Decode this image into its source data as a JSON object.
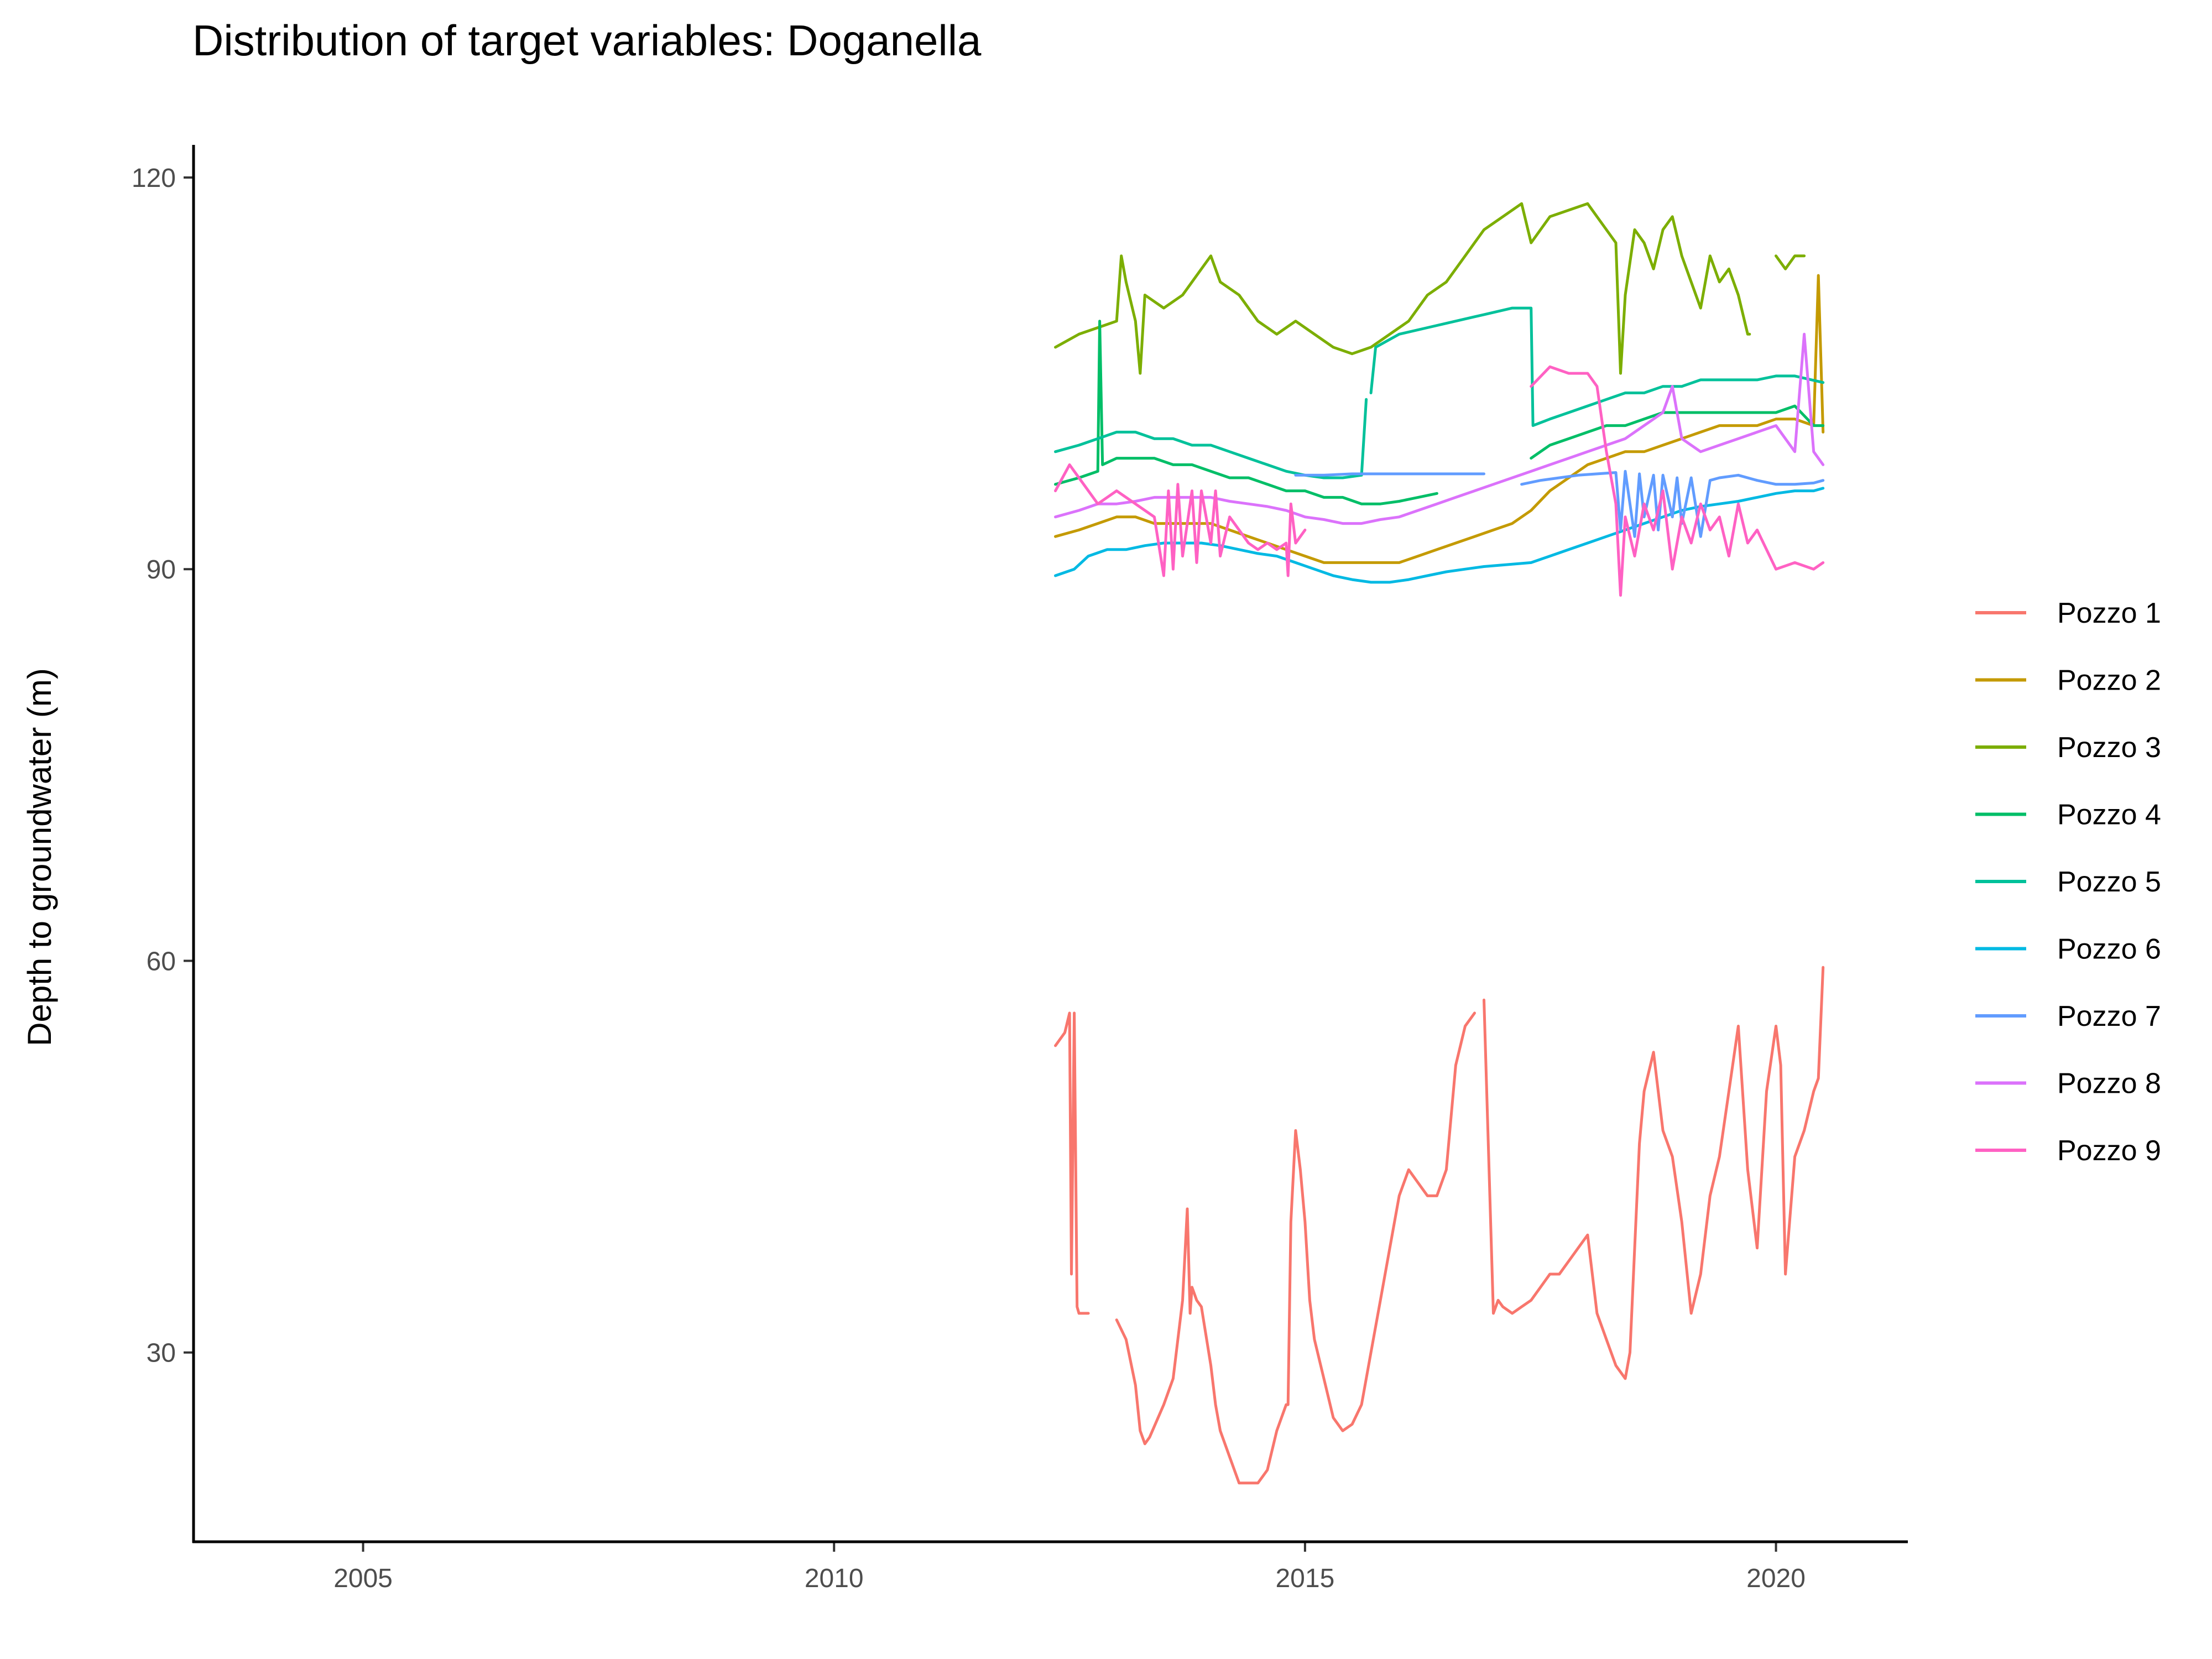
{
  "chart_data": {
    "type": "line",
    "title": "Distribution of target variables: Doganella",
    "xlabel": "",
    "ylabel": "Depth to groundwater (m)",
    "xlim": [
      2003.2,
      2021.4
    ],
    "ylim": [
      15.5,
      122.5
    ],
    "x_ticks": [
      2005,
      2010,
      2015,
      2020
    ],
    "y_ticks": [
      30,
      60,
      90,
      120
    ],
    "grid": false,
    "legend_position": "right",
    "series": [
      {
        "name": "Pozzo 1",
        "color": "#F8766D",
        "x": [
          2012.35,
          2012.45,
          2012.5,
          2012.52,
          2012.55,
          2012.58,
          2012.6,
          2012.65,
          2012.7,
          2013.0,
          2013.1,
          2013.2,
          2013.25,
          2013.3,
          2013.35,
          2013.5,
          2013.6,
          2013.7,
          2013.75,
          2013.78,
          2013.8,
          2013.85,
          2013.9,
          2014.0,
          2014.05,
          2014.1,
          2014.2,
          2014.3,
          2014.4,
          2014.5,
          2014.6,
          2014.7,
          2014.8,
          2014.82,
          2014.85,
          2014.9,
          2014.95,
          2015.0,
          2015.05,
          2015.1,
          2015.2,
          2015.3,
          2015.4,
          2015.5,
          2015.6,
          2015.7,
          2015.8,
          2015.9,
          2016.0,
          2016.1,
          2016.2,
          2016.3,
          2016.4,
          2016.5,
          2016.6,
          2016.7,
          2016.8,
          2016.9,
          2017.0,
          2017.05,
          2017.1,
          2017.2,
          2017.3,
          2017.4,
          2017.5,
          2017.6,
          2017.7,
          2017.8,
          2017.9,
          2018.0,
          2018.1,
          2018.15,
          2018.2,
          2018.3,
          2018.4,
          2018.45,
          2018.5,
          2018.55,
          2018.6,
          2018.7,
          2018.8,
          2018.9,
          2019.0,
          2019.1,
          2019.2,
          2019.3,
          2019.4,
          2019.5,
          2019.6,
          2019.7,
          2019.8,
          2019.9,
          2020.0,
          2020.05,
          2020.1,
          2020.2,
          2020.3,
          2020.4,
          2020.45,
          2020.5
        ],
        "y": [
          53.5,
          54.5,
          56,
          36,
          56,
          33.5,
          33,
          33,
          33,
          32.5,
          31,
          27.5,
          24,
          23,
          23.5,
          26,
          28,
          34,
          41,
          33,
          35,
          34,
          33.5,
          29,
          26,
          24,
          22,
          20,
          20,
          20,
          21,
          24,
          26,
          26,
          40,
          47,
          44,
          40,
          34,
          31,
          28,
          25,
          24,
          24.5,
          26,
          30,
          34,
          38,
          42,
          44,
          43,
          42,
          42,
          44,
          52,
          55,
          56,
          57,
          33,
          34,
          33.5,
          33,
          33.5,
          34,
          35,
          36,
          36,
          37,
          38,
          39,
          33,
          32,
          31,
          29,
          28,
          30,
          38,
          46,
          50,
          53,
          47,
          45,
          40,
          33,
          36,
          42,
          45,
          50,
          55,
          44,
          38,
          50,
          55,
          52,
          36,
          45,
          47,
          50,
          51,
          59.5
        ],
        "gap_after": [
          8,
          56
        ]
      },
      {
        "name": "Pozzo 2",
        "color": "#C49A00",
        "x": [
          2012.35,
          2012.6,
          2012.8,
          2013.0,
          2013.2,
          2013.4,
          2013.6,
          2013.8,
          2014.0,
          2014.2,
          2014.4,
          2014.6,
          2014.8,
          2015.0,
          2015.2,
          2015.4,
          2015.6,
          2015.8,
          2016.0,
          2016.2,
          2016.4,
          2016.6,
          2016.8,
          2017.0,
          2017.2,
          2017.4,
          2017.6,
          2017.8,
          2018.0,
          2018.2,
          2018.4,
          2018.6,
          2018.8,
          2019.0,
          2019.2,
          2019.4,
          2019.6,
          2019.8,
          2020.0,
          2020.2,
          2020.4,
          2020.45,
          2020.5
        ],
        "y": [
          92.5,
          93,
          93.5,
          94,
          94,
          93.5,
          93.5,
          93.5,
          93.5,
          93,
          92.5,
          92,
          91.5,
          91,
          90.5,
          90.5,
          90.5,
          90.5,
          90.5,
          91,
          91.5,
          92,
          92.5,
          93,
          93.5,
          94.5,
          96,
          97,
          98,
          98.5,
          99,
          99,
          99.5,
          100,
          100.5,
          101,
          101,
          101,
          101.5,
          101.5,
          101,
          112.5,
          100.5
        ],
        "gap_after": []
      },
      {
        "name": "Pozzo 3",
        "color": "#7CAE00",
        "x": [
          2012.35,
          2012.6,
          2012.8,
          2013.0,
          2013.05,
          2013.1,
          2013.2,
          2013.25,
          2013.3,
          2013.5,
          2013.7,
          2013.9,
          2014.0,
          2014.1,
          2014.3,
          2014.5,
          2014.7,
          2014.9,
          2015.1,
          2015.3,
          2015.5,
          2015.7,
          2015.9,
          2016.1,
          2016.3,
          2016.5,
          2016.7,
          2016.9,
          2017.1,
          2017.3,
          2017.4,
          2017.6,
          2017.8,
          2018.0,
          2018.1,
          2018.3,
          2018.35,
          2018.4,
          2018.5,
          2018.6,
          2018.7,
          2018.8,
          2018.9,
          2019.0,
          2019.1,
          2019.2,
          2019.3,
          2019.4,
          2019.5,
          2019.6,
          2019.7,
          2019.72,
          2020.0,
          2020.1,
          2020.2,
          2020.3
        ],
        "y": [
          107,
          108,
          108.5,
          109,
          114,
          112,
          109,
          105,
          111,
          110,
          111,
          113,
          114,
          112,
          111,
          109,
          108,
          109,
          108,
          107,
          106.5,
          107,
          108,
          109,
          111,
          112,
          114,
          116,
          117,
          118,
          115,
          117,
          117.5,
          118,
          117,
          115,
          105,
          111,
          116,
          115,
          113,
          116,
          117,
          114,
          112,
          110,
          114,
          112,
          113,
          111,
          108,
          108,
          114,
          113,
          114,
          114
        ],
        "gap_after": [
          51
        ]
      },
      {
        "name": "Pozzo 4",
        "color": "#00BE67",
        "x": [
          2012.35,
          2012.6,
          2012.8,
          2012.82,
          2012.85,
          2013.0,
          2013.2,
          2013.4,
          2013.6,
          2013.8,
          2014.0,
          2014.2,
          2014.4,
          2014.6,
          2014.8,
          2015.0,
          2015.2,
          2015.4,
          2015.6,
          2015.8,
          2016.0,
          2016.2,
          2016.4,
          2017.4,
          2017.6,
          2017.8,
          2018.0,
          2018.2,
          2018.4,
          2018.6,
          2018.8,
          2019.0,
          2019.2,
          2019.4,
          2019.6,
          2019.8,
          2020.0,
          2020.2,
          2020.4,
          2020.5
        ],
        "y": [
          96.5,
          97,
          97.5,
          109,
          98,
          98.5,
          98.5,
          98.5,
          98,
          98,
          97.5,
          97,
          97,
          96.5,
          96,
          96,
          95.5,
          95.5,
          95,
          95,
          95.2,
          95.5,
          95.8,
          98.5,
          99.5,
          100,
          100.5,
          101,
          101,
          101.5,
          102,
          102,
          102,
          102,
          102,
          102,
          102,
          102.5,
          101,
          101
        ],
        "gap_after": [
          22
        ]
      },
      {
        "name": "Pozzo 5",
        "color": "#00C19A",
        "x": [
          2012.35,
          2012.6,
          2012.8,
          2013.0,
          2013.2,
          2013.4,
          2013.6,
          2013.8,
          2014.0,
          2014.2,
          2014.4,
          2014.6,
          2014.8,
          2015.0,
          2015.2,
          2015.4,
          2015.6,
          2015.65,
          2015.7,
          2015.75,
          2016.0,
          2016.3,
          2016.6,
          2016.9,
          2017.2,
          2017.4,
          2017.42,
          2017.6,
          2017.8,
          2018.0,
          2018.2,
          2018.4,
          2018.6,
          2018.8,
          2019.0,
          2019.2,
          2019.4,
          2019.6,
          2019.8,
          2020.0,
          2020.2,
          2020.5
        ],
        "y": [
          99,
          99.5,
          100,
          100.5,
          100.5,
          100,
          100,
          99.5,
          99.5,
          99,
          98.5,
          98,
          97.5,
          97.2,
          97,
          97,
          97.2,
          103,
          103.5,
          107,
          108,
          108.5,
          109,
          109.5,
          110,
          110,
          101,
          101.5,
          102,
          102.5,
          103,
          103.5,
          103.5,
          104,
          104,
          104.5,
          104.5,
          104.5,
          104.5,
          104.8,
          104.8,
          104.3
        ],
        "gap_after": [
          17
        ]
      },
      {
        "name": "Pozzo 6",
        "color": "#00B9E3",
        "x": [
          2012.35,
          2012.55,
          2012.7,
          2012.9,
          2013.1,
          2013.3,
          2013.5,
          2013.7,
          2013.9,
          2014.1,
          2014.3,
          2014.5,
          2014.7,
          2014.9,
          2015.1,
          2015.3,
          2015.5,
          2015.7,
          2015.9,
          2016.1,
          2016.3,
          2016.5,
          2016.7,
          2016.9,
          2017.4,
          2017.6,
          2017.8,
          2018.0,
          2018.2,
          2018.4,
          2018.6,
          2018.8,
          2019.0,
          2019.2,
          2019.4,
          2019.6,
          2019.8,
          2020.0,
          2020.2,
          2020.4,
          2020.5
        ],
        "y": [
          89.5,
          90,
          91,
          91.5,
          91.5,
          91.8,
          92,
          92,
          92,
          91.8,
          91.5,
          91.2,
          91,
          90.5,
          90,
          89.5,
          89.2,
          89,
          89,
          89.2,
          89.5,
          89.8,
          90,
          90.2,
          90.5,
          91,
          91.5,
          92,
          92.5,
          93,
          93.5,
          94,
          94.5,
          94.8,
          95,
          95.2,
          95.5,
          95.8,
          96,
          96,
          96.2
        ],
        "gap_after": []
      },
      {
        "name": "Pozzo 7",
        "color": "#619CFF",
        "x": [
          2014.9,
          2015.2,
          2015.5,
          2015.8,
          2016.1,
          2016.4,
          2016.7,
          2016.9,
          2017.3,
          2017.5,
          2017.7,
          2017.9,
          2018.1,
          2018.3,
          2018.35,
          2018.4,
          2018.5,
          2018.55,
          2018.6,
          2018.7,
          2018.75,
          2018.8,
          2018.9,
          2018.95,
          2019.0,
          2019.1,
          2019.2,
          2019.3,
          2019.4,
          2019.6,
          2019.8,
          2020.0,
          2020.2,
          2020.4,
          2020.5
        ],
        "y": [
          97.2,
          97.2,
          97.3,
          97.3,
          97.3,
          97.3,
          97.3,
          97.3,
          96.5,
          96.8,
          97,
          97.2,
          97.3,
          97.4,
          93,
          97.5,
          92.5,
          97.3,
          94,
          97.2,
          93,
          97.2,
          94,
          97,
          93.5,
          97,
          92.5,
          96.8,
          97,
          97.2,
          96.8,
          96.5,
          96.5,
          96.6,
          96.8
        ],
        "gap_after": [
          7
        ]
      },
      {
        "name": "Pozzo 8",
        "color": "#DB72FB",
        "x": [
          2012.35,
          2012.6,
          2012.8,
          2013.0,
          2013.2,
          2013.4,
          2013.6,
          2013.8,
          2014.0,
          2014.2,
          2014.4,
          2014.6,
          2014.8,
          2015.0,
          2015.2,
          2015.4,
          2015.6,
          2015.8,
          2016.0,
          2016.2,
          2016.4,
          2016.6,
          2016.8,
          2017.0,
          2017.2,
          2017.4,
          2017.6,
          2017.8,
          2018.0,
          2018.2,
          2018.4,
          2018.6,
          2018.8,
          2018.9,
          2019.0,
          2019.2,
          2019.4,
          2019.6,
          2019.8,
          2020.0,
          2020.2,
          2020.3,
          2020.4,
          2020.5
        ],
        "y": [
          94,
          94.5,
          95,
          95,
          95.2,
          95.5,
          95.5,
          95.5,
          95.5,
          95.2,
          95,
          94.8,
          94.5,
          94,
          93.8,
          93.5,
          93.5,
          93.8,
          94,
          94.5,
          95,
          95.5,
          96,
          96.5,
          97,
          97.5,
          98,
          98.5,
          99,
          99.5,
          100,
          101,
          102,
          104,
          100,
          99,
          99.5,
          100,
          100.5,
          101,
          99,
          108,
          99,
          98
        ],
        "gap_after": []
      },
      {
        "name": "Pozzo 9",
        "color": "#FF61C3",
        "x": [
          2012.35,
          2012.5,
          2012.6,
          2012.8,
          2013.0,
          2013.2,
          2013.4,
          2013.5,
          2013.55,
          2013.6,
          2013.65,
          2013.7,
          2013.8,
          2013.85,
          2013.9,
          2014.0,
          2014.05,
          2014.1,
          2014.2,
          2014.3,
          2014.4,
          2014.5,
          2014.6,
          2014.7,
          2014.8,
          2014.82,
          2014.85,
          2014.9,
          2015.0,
          2017.4,
          2017.6,
          2017.8,
          2018.0,
          2018.1,
          2018.2,
          2018.3,
          2018.35,
          2018.4,
          2018.5,
          2018.6,
          2018.7,
          2018.8,
          2018.9,
          2019.0,
          2019.1,
          2019.2,
          2019.3,
          2019.4,
          2019.5,
          2019.6,
          2019.7,
          2019.8,
          2020.0,
          2020.2,
          2020.4,
          2020.5
        ],
        "y": [
          96,
          98,
          97,
          95,
          96,
          95,
          94,
          89.5,
          96,
          90,
          96.5,
          91,
          96,
          90.5,
          96,
          92,
          96,
          91,
          94,
          93,
          92,
          91.5,
          92,
          91.5,
          92,
          89.5,
          95,
          92,
          93,
          104,
          105.5,
          105,
          105,
          104,
          99,
          95,
          88,
          94,
          91,
          95,
          93,
          96,
          90,
          94,
          92,
          95,
          93,
          94,
          91,
          95,
          92,
          93,
          90,
          90.5,
          90,
          90.5
        ],
        "gap_after": [
          28
        ]
      }
    ]
  }
}
